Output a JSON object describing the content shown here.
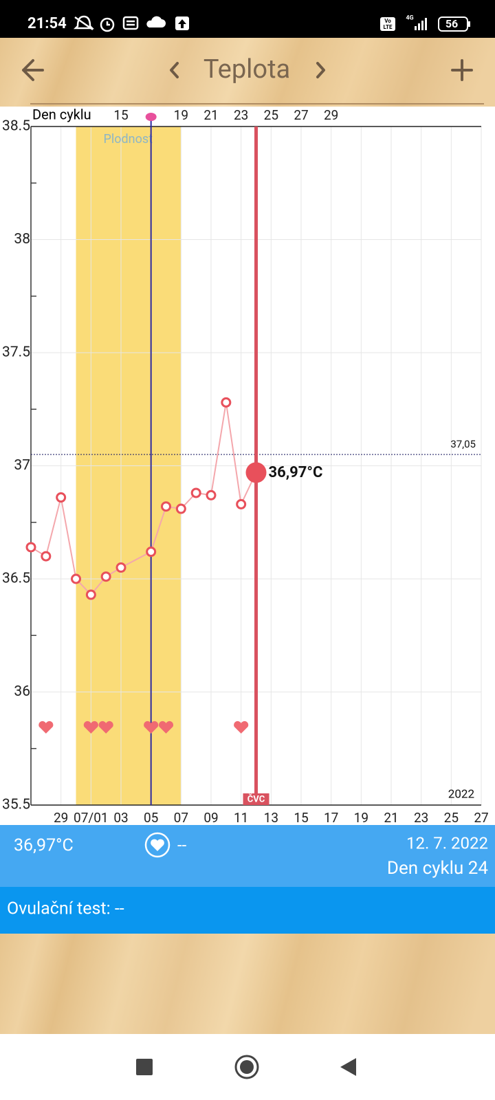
{
  "status_bar": {
    "time": "21:54",
    "volte": [
      "Vo",
      "LTE"
    ],
    "network": "4G",
    "battery": "56"
  },
  "header": {
    "title": "Teplota"
  },
  "chart_data": {
    "type": "line",
    "x": [
      0,
      1,
      2,
      3,
      4,
      5,
      6,
      8,
      9,
      10,
      11,
      12,
      13,
      14,
      15
    ],
    "values": [
      36.64,
      36.6,
      36.86,
      36.5,
      36.43,
      36.51,
      36.55,
      36.62,
      36.82,
      36.81,
      36.88,
      36.87,
      37.28,
      36.83,
      36.97
    ],
    "value_labels": [
      null,
      null,
      null,
      null,
      null,
      null,
      null,
      null,
      null,
      null,
      null,
      null,
      null,
      null,
      "36,97°C"
    ],
    "color": "#e8505b",
    "xlim": [
      0,
      30
    ],
    "xticks": [
      {
        "value": 2,
        "label": "29"
      },
      {
        "value": 4,
        "label": "07/01"
      },
      {
        "value": 6,
        "label": "03"
      },
      {
        "value": 8,
        "label": "05"
      },
      {
        "value": 10,
        "label": "07"
      },
      {
        "value": 12,
        "label": "09"
      },
      {
        "value": 14,
        "label": "11"
      },
      {
        "value": 16,
        "label": "13"
      },
      {
        "value": 18,
        "label": "15"
      },
      {
        "value": 20,
        "label": "17"
      },
      {
        "value": 22,
        "label": "19"
      },
      {
        "value": 24,
        "label": "21"
      },
      {
        "value": 26,
        "label": "23"
      },
      {
        "value": 28,
        "label": "25"
      },
      {
        "value": 30,
        "label": "27"
      }
    ],
    "ylim": [
      35.5,
      38.5
    ],
    "yticks": [
      35.5,
      36,
      36.5,
      37,
      37.5,
      38,
      38.5
    ],
    "minor_yticks": [
      35.75,
      36.25,
      36.75,
      37.25,
      37.75,
      38.25
    ],
    "grid": true,
    "top_axis_label": "Den cyklu",
    "top_ticks": [
      {
        "value": 6,
        "label": "15"
      },
      {
        "value": 10,
        "label": "19"
      },
      {
        "value": 12,
        "label": "21"
      },
      {
        "value": 14,
        "label": "23"
      },
      {
        "value": 16,
        "label": "25"
      },
      {
        "value": 18,
        "label": "27"
      },
      {
        "value": 20,
        "label": "29"
      }
    ],
    "fertile_window": {
      "label": "Plodnost",
      "start": 3,
      "end": 10
    },
    "ovulation_day": 8,
    "reference_line": {
      "value": 37.05,
      "label": "37,05"
    },
    "current_day": {
      "x": 15,
      "label": "ČVC"
    },
    "intercourse_days": [
      1,
      4,
      5,
      8,
      9,
      14
    ],
    "year": "2022"
  },
  "info": {
    "temperature": "36,97°C",
    "intercourse": "--",
    "date": "12. 7. 2022",
    "cycle_day": "Den cyklu 24",
    "ovulation_test": "Ovulační test: --"
  }
}
